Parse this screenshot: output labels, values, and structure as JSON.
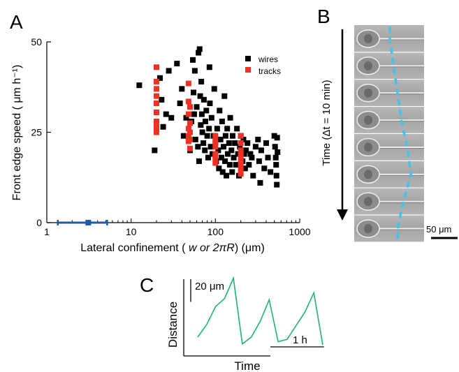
{
  "panel_labels": {
    "a": "A",
    "b": "B",
    "c": "C"
  },
  "colors": {
    "wires": "#000000",
    "tracks": "#ee3124",
    "blue": "#1f5aa6",
    "cyan": "#40c4ee",
    "green": "#1db375"
  },
  "panel_b": {
    "time_axis_label": "Time (Δt = 10 min)",
    "scale_bar": "50 μm",
    "frame_count": 8,
    "front_edge_offsets": [
      0.2,
      0.3,
      0.4,
      0.5,
      0.65,
      0.75,
      0.55,
      0.4
    ]
  },
  "chart_data": [
    {
      "type": "scatter",
      "panel": "A",
      "xlabel_prefix": "Lateral confinement (",
      "xlabel_math": " w or 2πR",
      "xlabel_suffix": ") (μm)",
      "ylabel": "Front edge speed ( μm h⁻¹)",
      "x_scale": "log",
      "xlim": [
        1,
        1000
      ],
      "ylim": [
        0,
        50
      ],
      "x_ticks": [
        {
          "v": 1,
          "label": "1"
        },
        {
          "v": 10,
          "label": "10"
        },
        {
          "v": 100,
          "label": "100"
        },
        {
          "v": 1000,
          "label": "1000"
        }
      ],
      "y_ticks": [
        {
          "v": 0,
          "label": "0"
        },
        {
          "v": 25,
          "label": "25"
        },
        {
          "v": 50,
          "label": "50"
        }
      ],
      "legend_position": "top-right",
      "series": [
        {
          "name": "wires",
          "color": "#000000",
          "points": [
            [
              12.5,
              38
            ],
            [
              19,
              20
            ],
            [
              22,
              40
            ],
            [
              23,
              34
            ],
            [
              24,
              26.5
            ],
            [
              26,
              30
            ],
            [
              28,
              42
            ],
            [
              30,
              29
            ],
            [
              35,
              44
            ],
            [
              38,
              33
            ],
            [
              40,
              37
            ],
            [
              42,
              24
            ],
            [
              45,
              29
            ],
            [
              50,
              20
            ],
            [
              52,
              28
            ],
            [
              54,
              45
            ],
            [
              55,
              36
            ],
            [
              56,
              30
            ],
            [
              57,
              42
            ],
            [
              58,
              23
            ],
            [
              60,
              32
            ],
            [
              62,
              21
            ],
            [
              63,
              47
            ],
            [
              64,
              17
            ],
            [
              65,
              48
            ],
            [
              66,
              35
            ],
            [
              67,
              27
            ],
            [
              68,
              39
            ],
            [
              69,
              30
            ],
            [
              70,
              25
            ],
            [
              72,
              22
            ],
            [
              73,
              34
            ],
            [
              75,
              20
            ],
            [
              76,
              28
            ],
            [
              78,
              31
            ],
            [
              80,
              24
            ],
            [
              82,
              18
            ],
            [
              84,
              26
            ],
            [
              85,
              43
            ],
            [
              86,
              33
            ],
            [
              88,
              21
            ],
            [
              90,
              29
            ],
            [
              92,
              19
            ],
            [
              95,
              24
            ],
            [
              97,
              37
            ],
            [
              100,
              22
            ],
            [
              102,
              17
            ],
            [
              105,
              26
            ],
            [
              108,
              20
            ],
            [
              110,
              15
            ],
            [
              112,
              31
            ],
            [
              115,
              23
            ],
            [
              118,
              18
            ],
            [
              120,
              28
            ],
            [
              122,
              14
            ],
            [
              125,
              21
            ],
            [
              128,
              35
            ],
            [
              130,
              17
            ],
            [
              132,
              24
            ],
            [
              135,
              13
            ],
            [
              138,
              26
            ],
            [
              140,
              19
            ],
            [
              145,
              22
            ],
            [
              148,
              16
            ],
            [
              150,
              29
            ],
            [
              155,
              20
            ],
            [
              158,
              14
            ],
            [
              160,
              24
            ],
            [
              165,
              18
            ],
            [
              170,
              22
            ],
            [
              175,
              16
            ],
            [
              180,
              26
            ],
            [
              185,
              19
            ],
            [
              190,
              13
            ],
            [
              195,
              21
            ],
            [
              200,
              24
            ],
            [
              210,
              17
            ],
            [
              215,
              23
            ],
            [
              220,
              19
            ],
            [
              225,
              15
            ],
            [
              230,
              20
            ],
            [
              240,
              22
            ],
            [
              250,
              16
            ],
            [
              260,
              19
            ],
            [
              270,
              18
            ],
            [
              280,
              13
            ],
            [
              300,
              21
            ],
            [
              320,
              23
            ],
            [
              330,
              17
            ],
            [
              340,
              11
            ],
            [
              350,
              20
            ],
            [
              380,
              15
            ],
            [
              400,
              22
            ],
            [
              420,
              18
            ],
            [
              450,
              14
            ],
            [
              500,
              24
            ],
            [
              510,
              21
            ],
            [
              520,
              18
            ],
            [
              525,
              16
            ],
            [
              530,
              13
            ],
            [
              535,
              10.5
            ],
            [
              540,
              23.5
            ],
            [
              545,
              19.5
            ]
          ]
        },
        {
          "name": "tracks",
          "color": "#ee3124",
          "points": [
            [
              20,
              43
            ],
            [
              20,
              39
            ],
            [
              20,
              35
            ],
            [
              20,
              30.5
            ],
            [
              20,
              28
            ],
            [
              20,
              26.5
            ],
            [
              20,
              25
            ],
            [
              20,
              33
            ],
            [
              20,
              37
            ],
            [
              48,
              38.5
            ],
            [
              48,
              33.5
            ],
            [
              48,
              30
            ],
            [
              48,
              26
            ],
            [
              48,
              24
            ],
            [
              48,
              22.5
            ],
            [
              50,
              27.5
            ],
            [
              50,
              20.5
            ],
            [
              50,
              32
            ],
            [
              50,
              25
            ],
            [
              50,
              23
            ],
            [
              100,
              24
            ],
            [
              100,
              21
            ],
            [
              100,
              19
            ],
            [
              100,
              17.5
            ],
            [
              100,
              16.5
            ],
            [
              100,
              22.5
            ],
            [
              100,
              18.5
            ],
            [
              200,
              24
            ],
            [
              200,
              22
            ],
            [
              200,
              20
            ],
            [
              200,
              18
            ],
            [
              200,
              16.5
            ],
            [
              200,
              15
            ],
            [
              200,
              13.5
            ],
            [
              200,
              19
            ]
          ]
        }
      ],
      "error_bar": {
        "x": 3.1,
        "y": 0,
        "x_low": 1.35,
        "x_high": 5.2,
        "color": "#1f5aa6"
      }
    },
    {
      "type": "line",
      "panel": "C",
      "xlabel": "Time",
      "ylabel": "Distance",
      "y_scale_bar": "20 μm",
      "x_scale_bar": "1 h",
      "y_scale_bar_units": 20,
      "x_scale_bar_units": 1,
      "x_per_step_hours": 0.1667,
      "color": "#1db375",
      "values": [
        8,
        19,
        35,
        42,
        60,
        2,
        8,
        22,
        41,
        4,
        6,
        18,
        30,
        47,
        1
      ]
    }
  ]
}
